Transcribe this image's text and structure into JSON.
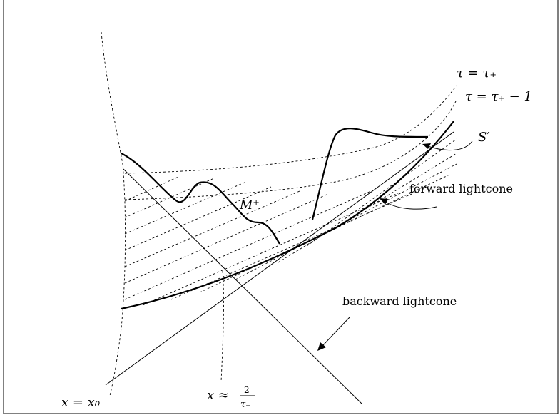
{
  "labels": {
    "tau_plus": "τ = τ₊",
    "tau_plus_minus_one": "τ = τ₊ − 1",
    "s_prime": "S′",
    "forward_lightcone": "forward lightcone",
    "m_plus": "M⁺",
    "backward_lightcone": "backward lightcone",
    "x_eq_x0": "x = x₀",
    "x_approx": "x ≈",
    "x_approx_num": "2",
    "x_approx_den": "τ₊"
  }
}
